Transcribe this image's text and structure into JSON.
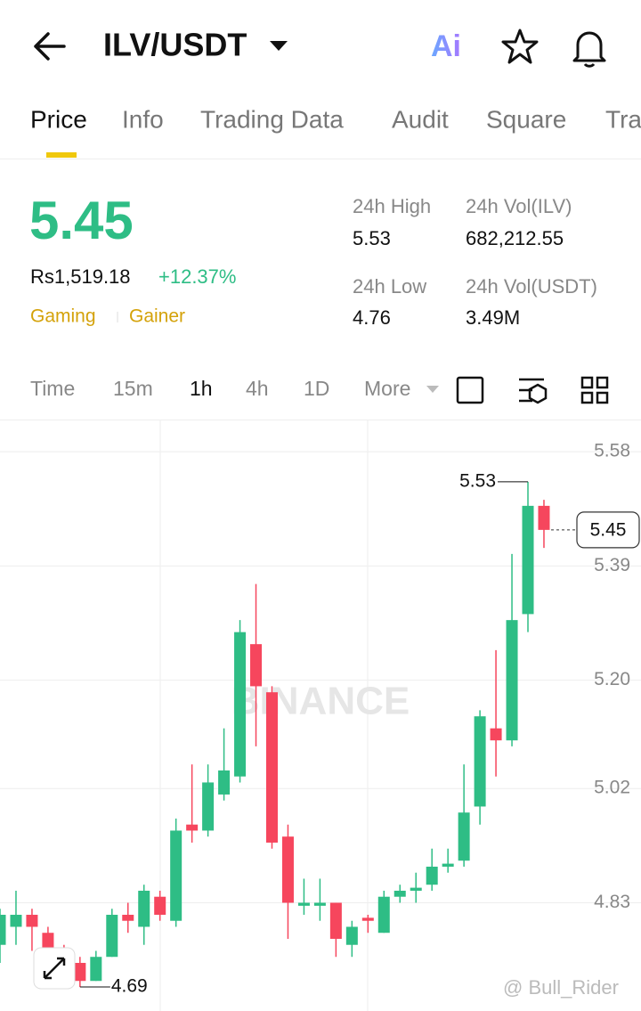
{
  "header": {
    "title": "ILV/USDT",
    "ai": "Ai"
  },
  "tabs": [
    "Price",
    "Info",
    "Trading Data",
    "Audit",
    "Square",
    "Tra"
  ],
  "price": {
    "last": "5.45",
    "fiat": "Rs1,519.18",
    "change": "+12.37%",
    "tags": [
      "Gaming",
      "Gainer"
    ]
  },
  "stats": [
    {
      "label": "24h High",
      "value": "5.53"
    },
    {
      "label": "24h Vol(ILV)",
      "value": "682,212.55"
    },
    {
      "label": "24h Low",
      "value": "4.76"
    },
    {
      "label": "24h Vol(USDT)",
      "value": "3.49M"
    }
  ],
  "intervals": [
    "Time",
    "15m",
    "1h",
    "4h",
    "1D",
    "More"
  ],
  "chart_data": {
    "type": "candlestick",
    "open": [
      4.76,
      4.79,
      4.81,
      4.78,
      4.75,
      4.73,
      4.7,
      4.74,
      4.81,
      4.79,
      4.84,
      4.8,
      4.96,
      4.95,
      5.01,
      5.04,
      5.26,
      5.18,
      4.94,
      4.825,
      4.825,
      4.83,
      4.76,
      4.805,
      4.78,
      4.84,
      4.85,
      4.86,
      4.89,
      4.9,
      4.99,
      5.12,
      5.1,
      5.31,
      5.49
    ],
    "high": [
      4.82,
      4.85,
      4.82,
      4.79,
      4.76,
      4.74,
      4.75,
      4.82,
      4.83,
      4.86,
      4.85,
      4.97,
      5.06,
      5.06,
      5.12,
      5.3,
      5.36,
      5.19,
      4.96,
      4.87,
      4.87,
      4.83,
      4.8,
      4.81,
      4.85,
      4.86,
      4.88,
      4.92,
      4.92,
      5.06,
      5.15,
      5.25,
      5.41,
      5.53,
      5.5
    ],
    "low": [
      4.73,
      4.76,
      4.75,
      4.72,
      4.7,
      4.69,
      4.7,
      4.74,
      4.78,
      4.76,
      4.8,
      4.79,
      4.93,
      4.94,
      5.0,
      5.03,
      5.09,
      4.92,
      4.77,
      4.81,
      4.8,
      4.74,
      4.74,
      4.78,
      4.78,
      4.83,
      4.83,
      4.85,
      4.88,
      4.89,
      4.96,
      5.04,
      5.09,
      5.28,
      5.42
    ],
    "close": [
      4.81,
      4.81,
      4.79,
      4.74,
      4.72,
      4.7,
      4.74,
      4.81,
      4.8,
      4.85,
      4.81,
      4.95,
      4.95,
      5.03,
      5.05,
      5.28,
      5.19,
      4.93,
      4.83,
      4.83,
      4.83,
      4.77,
      4.79,
      4.8,
      4.84,
      4.85,
      4.855,
      4.89,
      4.895,
      4.98,
      5.14,
      5.1,
      5.3,
      5.49,
      5.45
    ],
    "up_color": "#2ebd85",
    "down_color": "#f6465d",
    "ylim": [
      4.65,
      5.632
    ],
    "yticks": [
      5.58,
      5.39,
      {
        "value": 5.2,
        "label": "5.20"
      },
      5.02,
      4.83
    ],
    "grid": true,
    "annotations": {
      "high": 5.53,
      "low": 4.69,
      "last": 5.45
    }
  },
  "watermarks": [
    "BINANCE",
    "@ Bull_Rider"
  ]
}
